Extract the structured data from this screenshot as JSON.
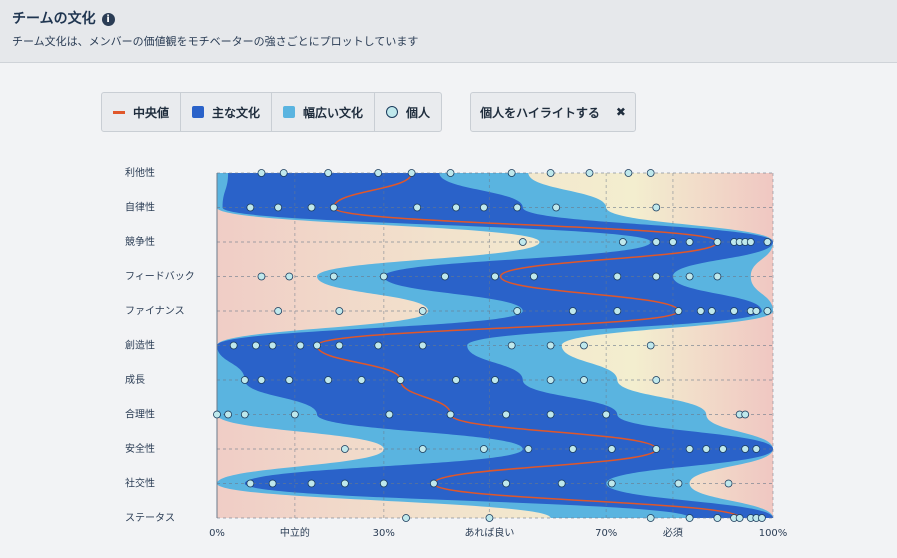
{
  "header": {
    "title": "チームの文化",
    "subtitle": "チーム文化は、メンバーの価値観をモチベーターの強さごとにプロットしています"
  },
  "legend": {
    "items": [
      "中央値",
      "主な文化",
      "幅広い文化",
      "個人"
    ]
  },
  "button": {
    "label": "個人をハイライトする"
  },
  "chart_data": {
    "type": "culture",
    "categories": [
      "利他性",
      "自律性",
      "競争性",
      "フィードバック",
      "ファイナンス",
      "創造性",
      "成長",
      "合理性",
      "安全性",
      "社交性",
      "ステータス"
    ],
    "xlim": [
      0,
      100
    ],
    "xticks": [
      {
        "value": 0,
        "label": "0%"
      },
      {
        "value": 14,
        "label": "中立的"
      },
      {
        "value": 30,
        "label": "30%"
      },
      {
        "value": 49,
        "label": "あれば良い"
      },
      {
        "value": 70,
        "label": "70%"
      },
      {
        "value": 82,
        "label": "必須"
      },
      {
        "value": 100,
        "label": "100%"
      }
    ],
    "median": {
      "name": "中央値",
      "color": "#e0572a",
      "values": [
        35,
        21,
        90,
        51,
        83,
        18,
        33,
        42,
        79,
        39,
        94
      ]
    },
    "bands": [
      {
        "name": "幅広い文化",
        "color": "#5ab4e0",
        "lo": [
          0,
          0,
          58,
          18,
          38,
          0,
          0,
          0,
          30,
          0,
          60
        ],
        "hi": [
          56,
          70,
          100,
          96,
          100,
          62,
          72,
          88,
          100,
          85,
          100
        ]
      },
      {
        "name": "主な文化",
        "color": "#2a62c9",
        "lo": [
          2,
          1,
          78,
          30,
          55,
          0,
          5,
          18,
          55,
          5,
          85
        ],
        "hi": [
          40,
          55,
          100,
          82,
          98,
          45,
          55,
          72,
          100,
          70,
          100
        ]
      }
    ],
    "individuals": {
      "name": "個人",
      "color": "#bfe8ec",
      "values": [
        [
          8,
          12,
          20,
          29,
          35,
          42,
          53,
          60,
          67,
          74,
          78
        ],
        [
          6,
          11,
          17,
          21,
          36,
          43,
          48,
          54,
          61,
          79
        ],
        [
          55,
          73,
          79,
          82,
          85,
          90,
          93,
          94,
          95,
          96,
          99
        ],
        [
          8,
          13,
          21,
          30,
          41,
          50,
          57,
          72,
          79,
          85,
          90
        ],
        [
          11,
          22,
          37,
          54,
          64,
          72,
          83,
          87,
          89,
          93,
          96,
          97,
          99
        ],
        [
          3,
          7,
          10,
          15,
          18,
          22,
          29,
          37,
          53,
          60,
          66,
          78
        ],
        [
          5,
          8,
          13,
          20,
          26,
          33,
          43,
          50,
          60,
          66,
          79
        ],
        [
          0,
          2,
          5,
          14,
          31,
          42,
          52,
          60,
          70,
          94,
          95
        ],
        [
          23,
          37,
          48,
          56,
          64,
          71,
          79,
          85,
          88,
          91,
          95,
          97
        ],
        [
          6,
          10,
          17,
          23,
          30,
          39,
          52,
          62,
          71,
          83,
          92
        ],
        [
          34,
          49,
          78,
          85,
          90,
          93,
          94,
          96,
          97,
          98
        ]
      ]
    },
    "grid": true
  }
}
